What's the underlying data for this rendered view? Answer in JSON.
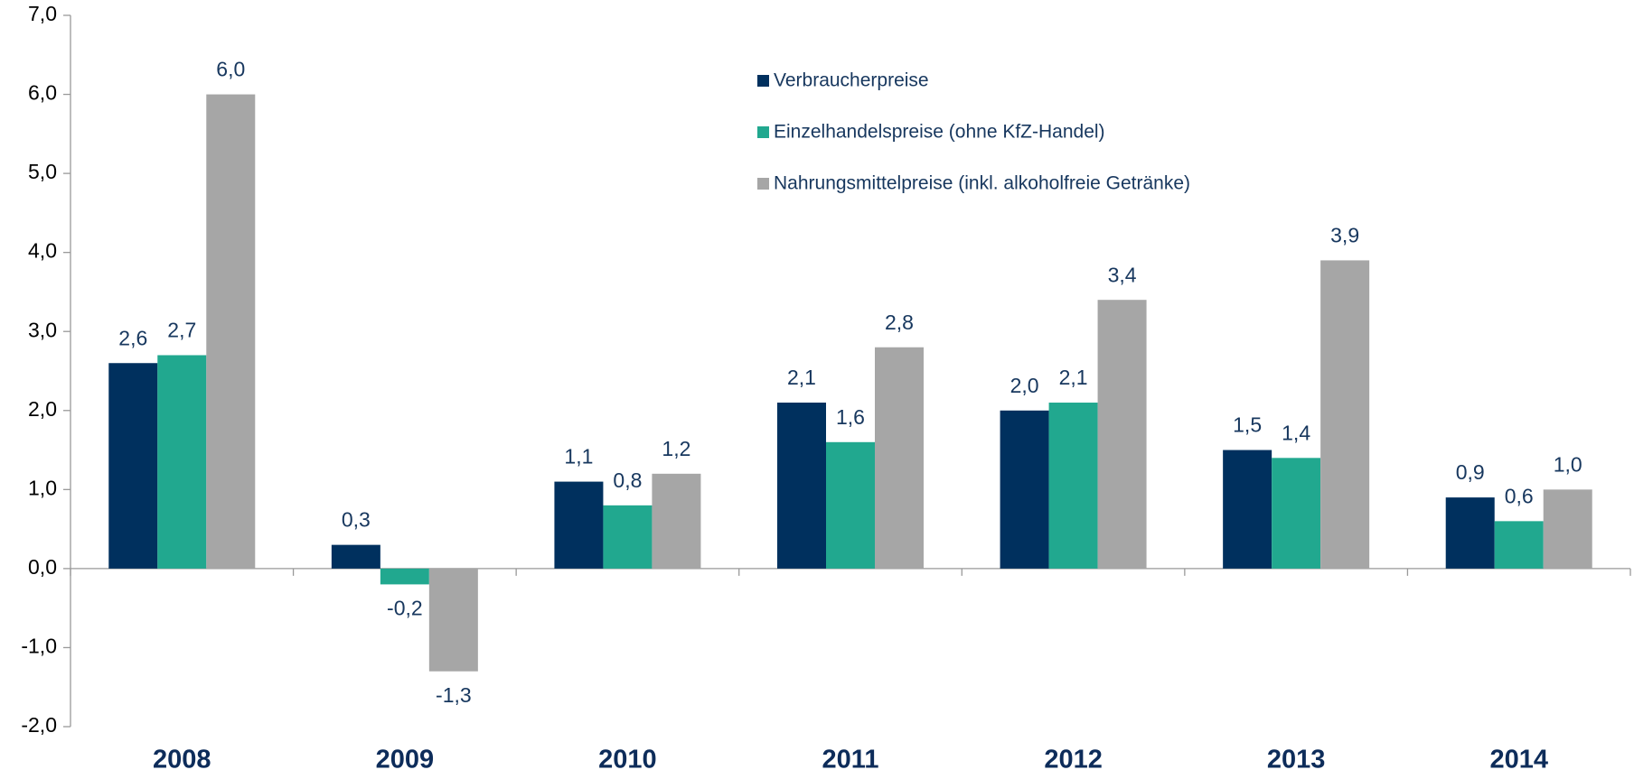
{
  "chart_data": {
    "type": "bar",
    "categories": [
      "2008",
      "2009",
      "2010",
      "2011",
      "2012",
      "2013",
      "2014"
    ],
    "series": [
      {
        "name": "Verbraucherpreise",
        "color": "#00305e",
        "values": [
          2.6,
          0.3,
          1.1,
          2.1,
          2.0,
          1.5,
          0.9
        ],
        "value_labels": [
          "2,6",
          "0,3",
          "1,1",
          "2,1",
          "2,0",
          "1,5",
          "0,9"
        ]
      },
      {
        "name": "Einzelhandelspreise (ohne KfZ-Handel)",
        "color": "#21a88f",
        "values": [
          2.7,
          -0.2,
          0.8,
          1.6,
          2.1,
          1.4,
          0.6
        ],
        "value_labels": [
          "2,7",
          "-0,2",
          "0,8",
          "1,6",
          "2,1",
          "1,4",
          "0,6"
        ]
      },
      {
        "name": "Nahrungsmittelpreise (inkl. alkoholfreie Getränke)",
        "color": "#a6a6a6",
        "values": [
          6.0,
          -1.3,
          1.2,
          2.8,
          3.4,
          3.9,
          1.0
        ],
        "value_labels": [
          "6,0",
          "-1,3",
          "1,2",
          "2,8",
          "3,4",
          "3,9",
          "1,0"
        ]
      }
    ],
    "ylim": [
      -2,
      7
    ],
    "yticks": [
      {
        "value": -2,
        "label": "-2,0"
      },
      {
        "value": -1,
        "label": "-1,0"
      },
      {
        "value": 0,
        "label": "0,0"
      },
      {
        "value": 1,
        "label": "1,0"
      },
      {
        "value": 2,
        "label": "2,0"
      },
      {
        "value": 3,
        "label": "3,0"
      },
      {
        "value": 4,
        "label": "4,0"
      },
      {
        "value": 5,
        "label": "5,0"
      },
      {
        "value": 6,
        "label": "6,0"
      },
      {
        "value": 7,
        "label": "7,0"
      }
    ],
    "grid": false,
    "legend": "top"
  }
}
